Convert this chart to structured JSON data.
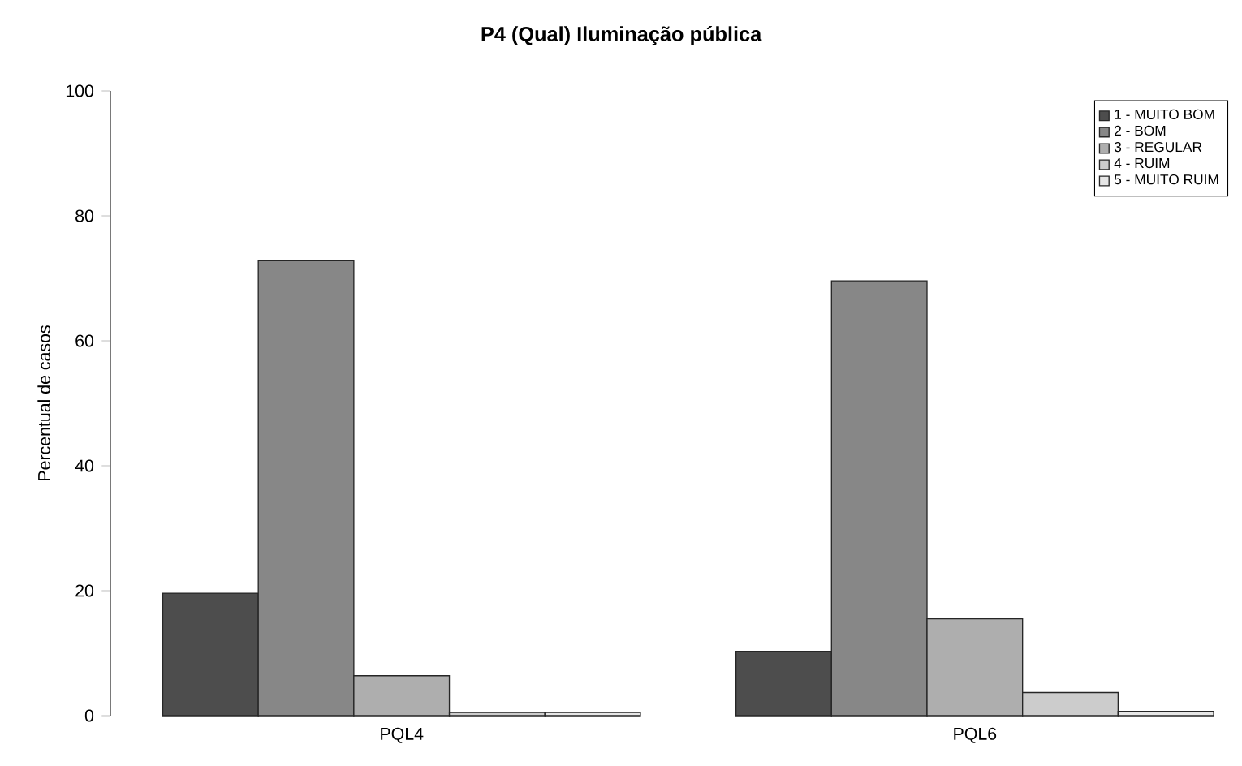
{
  "chart_data": {
    "type": "bar",
    "title": "P4 (Qual) Iluminação pública",
    "ylabel": "Percentual de casos",
    "categories": [
      "PQL4",
      "PQL6"
    ],
    "series": [
      {
        "name": "1 - MUITO BOM",
        "color": "#4d4d4d",
        "values": [
          19.6,
          10.3
        ]
      },
      {
        "name": "2 - BOM",
        "color": "#878787",
        "values": [
          72.8,
          69.6
        ]
      },
      {
        "name": "3 - REGULAR",
        "color": "#aeaeae",
        "values": [
          6.4,
          15.5
        ]
      },
      {
        "name": "4 - RUIM",
        "color": "#cccccc",
        "values": [
          0.5,
          3.7
        ]
      },
      {
        "name": "5 - MUITO RUIM",
        "color": "#e6e6e6",
        "values": [
          0.5,
          0.7
        ]
      }
    ],
    "ylim": [
      0,
      100
    ],
    "yticks": [
      0,
      20,
      40,
      60,
      80,
      100
    ],
    "grid": false,
    "legend": "top right"
  }
}
